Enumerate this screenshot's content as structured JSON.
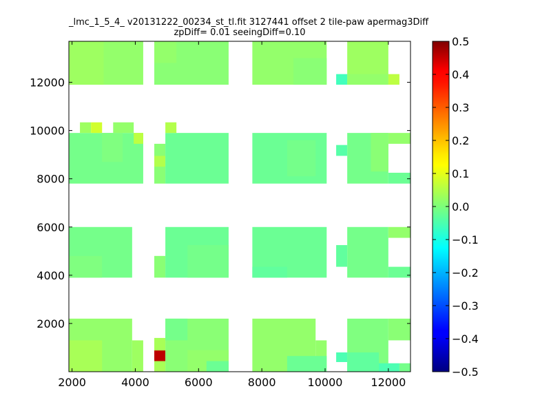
{
  "chart_data": {
    "type": "heatmap",
    "title": "_lmc_1_5_4_ v20131222_00234_st_tl.fit 3127441 offset 2 tile-paw apermag3Diff",
    "subtitle": "zpDiff= 0.01 seeingDiff=0.10",
    "xlabel": "",
    "ylabel": "",
    "xlim": [
      1900,
      12700
    ],
    "ylim": [
      0,
      13700
    ],
    "x_ticks": [
      2000,
      4000,
      6000,
      8000,
      10000,
      12000
    ],
    "y_ticks": [
      2000,
      4000,
      6000,
      8000,
      10000,
      12000
    ],
    "colorbar": {
      "colormap": "jet",
      "vmin": -0.5,
      "vmax": 0.5,
      "ticks": [
        "0.5",
        "0.4",
        "0.3",
        "0.2",
        "0.1",
        "0.0",
        "−0.1",
        "−0.2",
        "−0.3",
        "−0.4",
        "−0.5"
      ]
    },
    "grid": false,
    "cell_size": [
      350,
      440
    ],
    "cells": [
      {
        "x0": 1900,
        "x1": 4250,
        "y0": 11900,
        "y1": 13700,
        "v": 0.02
      },
      {
        "x0": 4600,
        "x1": 6950,
        "y0": 11900,
        "y1": 13700,
        "v": 0.01
      },
      {
        "x0": 7700,
        "x1": 10050,
        "y0": 11900,
        "y1": 13700,
        "v": 0.02
      },
      {
        "x0": 10700,
        "x1": 12000,
        "y0": 11900,
        "y1": 13700,
        "v": 0.03
      },
      {
        "x0": 10350,
        "x1": 10700,
        "y0": 11900,
        "y1": 12340,
        "v": -0.06
      },
      {
        "x0": 10700,
        "x1": 12000,
        "y0": 11900,
        "y1": 12340,
        "v": 0.02
      },
      {
        "x0": 12000,
        "x1": 12350,
        "y0": 11900,
        "y1": 12340,
        "v": 0.06
      },
      {
        "x0": 1900,
        "x1": 3000,
        "y0": 11900,
        "y1": 13700,
        "v": 0.03
      },
      {
        "x0": 4600,
        "x1": 5300,
        "y0": 12800,
        "y1": 13700,
        "v": 0.02
      },
      {
        "x0": 9000,
        "x1": 10050,
        "y0": 11900,
        "y1": 13000,
        "v": 0.01
      },
      {
        "x0": 1900,
        "x1": 4250,
        "y0": 7800,
        "y1": 9900,
        "v": -0.01
      },
      {
        "x0": 2250,
        "x1": 2600,
        "y0": 9900,
        "y1": 10340,
        "v": 0.03
      },
      {
        "x0": 2600,
        "x1": 2950,
        "y0": 9900,
        "y1": 10340,
        "v": 0.08
      },
      {
        "x0": 3300,
        "x1": 3950,
        "y0": 9900,
        "y1": 10340,
        "v": 0.02
      },
      {
        "x0": 3950,
        "x1": 4250,
        "y0": 9450,
        "y1": 9900,
        "v": 0.06
      },
      {
        "x0": 2950,
        "x1": 3600,
        "y0": 8700,
        "y1": 9900,
        "v": 0.0
      },
      {
        "x0": 4600,
        "x1": 4950,
        "y0": 7800,
        "y1": 9450,
        "v": 0.01
      },
      {
        "x0": 4600,
        "x1": 4950,
        "y0": 8500,
        "y1": 8950,
        "v": 0.05
      },
      {
        "x0": 4950,
        "x1": 6950,
        "y0": 7800,
        "y1": 9900,
        "v": -0.02
      },
      {
        "x0": 4950,
        "x1": 5300,
        "y0": 9900,
        "y1": 10340,
        "v": 0.05
      },
      {
        "x0": 7700,
        "x1": 10050,
        "y0": 7800,
        "y1": 9900,
        "v": -0.02
      },
      {
        "x0": 8800,
        "x1": 9700,
        "y0": 8100,
        "y1": 9600,
        "v": -0.01
      },
      {
        "x0": 10350,
        "x1": 10700,
        "y0": 8950,
        "y1": 9400,
        "v": -0.04
      },
      {
        "x0": 10700,
        "x1": 12000,
        "y0": 7800,
        "y1": 9900,
        "v": -0.01
      },
      {
        "x0": 11450,
        "x1": 12000,
        "y0": 8300,
        "y1": 9900,
        "v": 0.01
      },
      {
        "x0": 12000,
        "x1": 12700,
        "y0": 9450,
        "y1": 9900,
        "v": 0.02
      },
      {
        "x0": 12000,
        "x1": 12700,
        "y0": 7800,
        "y1": 8250,
        "v": -0.02
      },
      {
        "x0": 1900,
        "x1": 3900,
        "y0": 3900,
        "y1": 6000,
        "v": -0.01
      },
      {
        "x0": 1900,
        "x1": 2950,
        "y0": 3900,
        "y1": 4800,
        "v": 0.0
      },
      {
        "x0": 4600,
        "x1": 4950,
        "y0": 3900,
        "y1": 4800,
        "v": 0.01
      },
      {
        "x0": 4950,
        "x1": 6950,
        "y0": 3900,
        "y1": 6000,
        "v": -0.02
      },
      {
        "x0": 5650,
        "x1": 6950,
        "y0": 3900,
        "y1": 5250,
        "v": -0.01
      },
      {
        "x0": 7700,
        "x1": 10050,
        "y0": 3900,
        "y1": 6000,
        "v": -0.02
      },
      {
        "x0": 7700,
        "x1": 8800,
        "y0": 3900,
        "y1": 4350,
        "v": -0.03
      },
      {
        "x0": 10350,
        "x1": 10700,
        "y0": 4350,
        "y1": 5250,
        "v": -0.03
      },
      {
        "x0": 10700,
        "x1": 12000,
        "y0": 3900,
        "y1": 6000,
        "v": -0.01
      },
      {
        "x0": 12000,
        "x1": 12700,
        "y0": 5550,
        "y1": 6000,
        "v": 0.02
      },
      {
        "x0": 12000,
        "x1": 12700,
        "y0": 3900,
        "y1": 4350,
        "v": -0.02
      },
      {
        "x0": 1900,
        "x1": 3900,
        "y0": 0,
        "y1": 2200,
        "v": 0.02
      },
      {
        "x0": 1900,
        "x1": 2950,
        "y0": 0,
        "y1": 1300,
        "v": 0.04
      },
      {
        "x0": 3900,
        "x1": 4250,
        "y0": 0,
        "y1": 1300,
        "v": 0.03
      },
      {
        "x0": 4600,
        "x1": 4950,
        "y0": 0,
        "y1": 1400,
        "v": 0.04
      },
      {
        "x0": 4600,
        "x1": 4950,
        "y0": 440,
        "y1": 880,
        "v": 0.44
      },
      {
        "x0": 4950,
        "x1": 6950,
        "y0": 0,
        "y1": 2200,
        "v": 0.01
      },
      {
        "x0": 4950,
        "x1": 5650,
        "y0": 1300,
        "y1": 2200,
        "v": -0.01
      },
      {
        "x0": 5650,
        "x1": 6950,
        "y0": 0,
        "y1": 900,
        "v": 0.02
      },
      {
        "x0": 6250,
        "x1": 6950,
        "y0": 0,
        "y1": 440,
        "v": -0.02
      },
      {
        "x0": 7700,
        "x1": 9700,
        "y0": 0,
        "y1": 2200,
        "v": 0.02
      },
      {
        "x0": 9700,
        "x1": 10050,
        "y0": 0,
        "y1": 1300,
        "v": 0.02
      },
      {
        "x0": 8800,
        "x1": 10050,
        "y0": 0,
        "y1": 650,
        "v": -0.02
      },
      {
        "x0": 10700,
        "x1": 12000,
        "y0": 0,
        "y1": 2200,
        "v": 0.0
      },
      {
        "x0": 12000,
        "x1": 12700,
        "y0": 1300,
        "y1": 2200,
        "v": 0.01
      },
      {
        "x0": 10350,
        "x1": 10700,
        "y0": 400,
        "y1": 800,
        "v": -0.05
      },
      {
        "x0": 10700,
        "x1": 11700,
        "y0": 0,
        "y1": 800,
        "v": -0.03
      },
      {
        "x0": 11700,
        "x1": 12350,
        "y0": 0,
        "y1": 350,
        "v": -0.05
      },
      {
        "x0": 12350,
        "x1": 12700,
        "y0": 0,
        "y1": 350,
        "v": -0.01
      }
    ]
  }
}
